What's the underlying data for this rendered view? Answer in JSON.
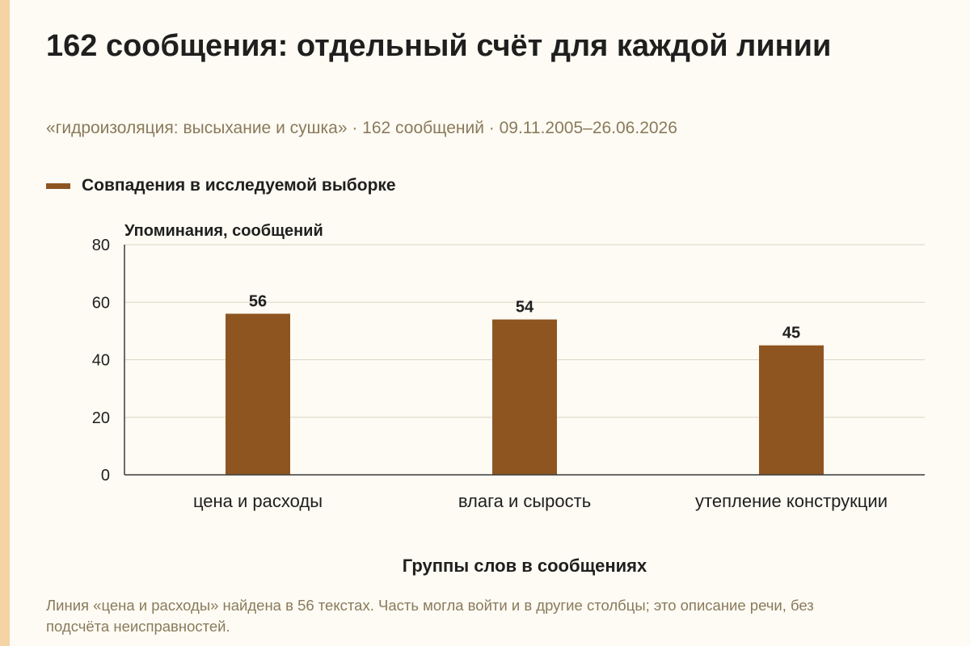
{
  "title": "162 сообщения: отдельный счёт для каждой линии",
  "subtitle": "«гидроизоляция: высыхание и сушка» · 162 сообщений · 09.11.2005–26.06.2026",
  "footnote": "Линия «цена и расходы» найдена в 56 текстах. Часть могла войти и в другие столбцы; это описание речи, без подсчёта неисправностей.",
  "colors": {
    "bar": "#8f5521",
    "accent_strip": "#f5d3a4",
    "background": "#fdfbf3",
    "muted_text": "#8a7a5c"
  },
  "chart_data": {
    "type": "bar",
    "categories": [
      "цена и расходы",
      "влага и сырость",
      "утепление конструкции"
    ],
    "series": [
      {
        "name": "Совпадения в исследуемой выборке",
        "values": [
          56,
          54,
          45
        ]
      }
    ],
    "xlabel": "Группы слов в сообщениях",
    "ylabel": "Упоминания, сообщений",
    "ylim": [
      0,
      80
    ],
    "yticks": [
      0,
      20,
      40,
      60,
      80
    ],
    "grid": true,
    "legend": "top-left",
    "data_labels": true
  }
}
